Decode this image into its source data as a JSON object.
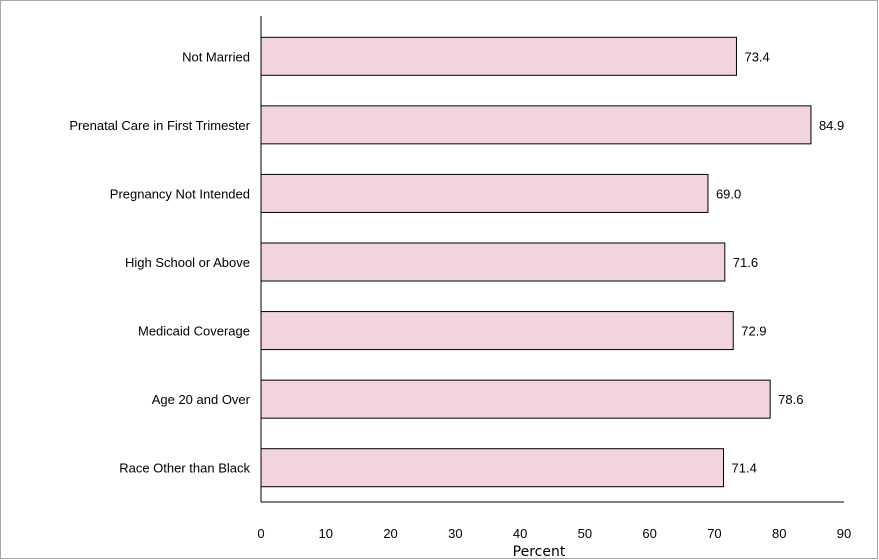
{
  "chart_data": {
    "type": "bar",
    "orientation": "horizontal",
    "title": "",
    "xlabel": "Percent",
    "ylabel": "",
    "xlim": [
      0,
      90
    ],
    "xticks": [
      0,
      10,
      20,
      30,
      40,
      50,
      60,
      70,
      80,
      90
    ],
    "grid": false,
    "legend": "none",
    "bar_color": "#f2d3e0",
    "bar_edge_color": "#000000",
    "categories": [
      "Not Married",
      "Prenatal Care in First Trimester",
      "Pregnancy Not Intended",
      "High School or Above",
      "Medicaid Coverage",
      "Age 20 and Over",
      "Race Other than Black"
    ],
    "values": [
      73.4,
      84.9,
      69.0,
      71.6,
      72.9,
      78.6,
      71.4
    ],
    "value_labels": [
      "73.4",
      "84.9",
      "69.0",
      "71.6",
      "72.9",
      "78.6",
      "71.4"
    ]
  }
}
